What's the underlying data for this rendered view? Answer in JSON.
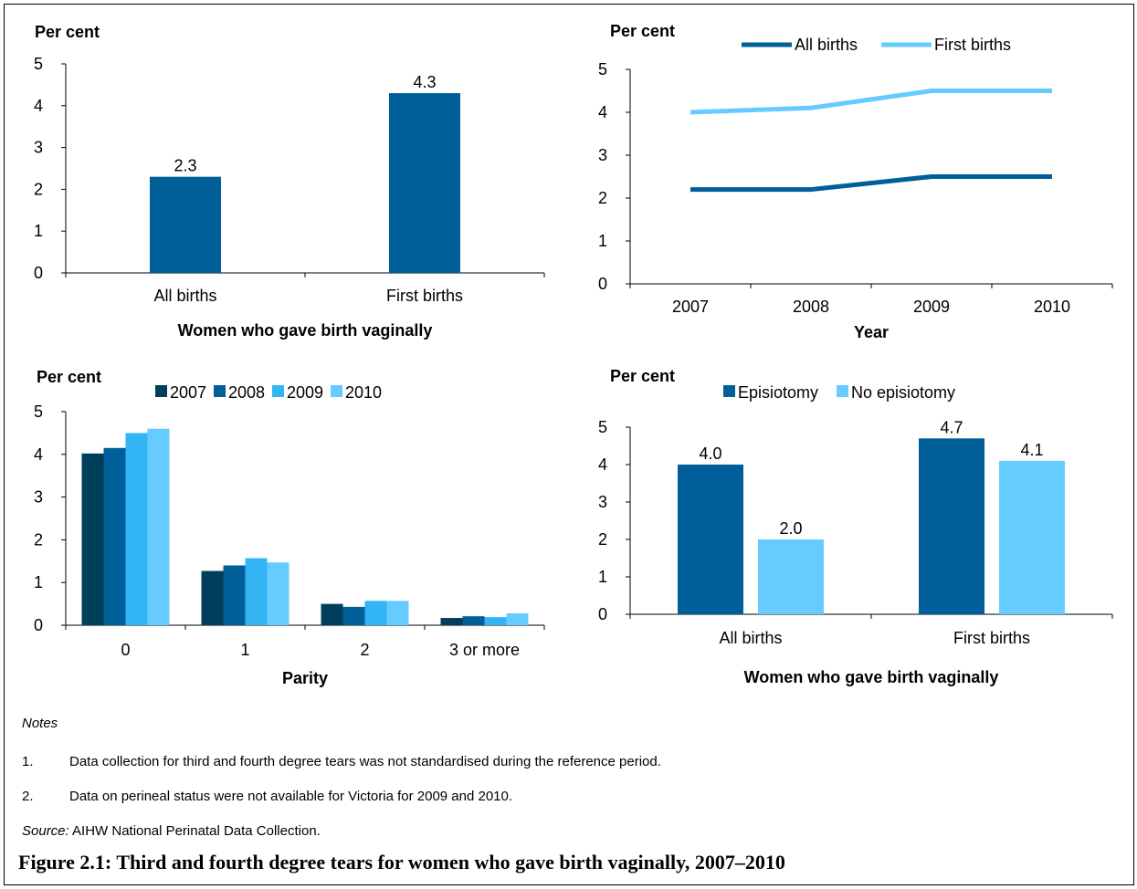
{
  "colors": {
    "dark": "#003f5c",
    "mid": "#005f99",
    "light": "#33b5f5",
    "pale": "#66ccff"
  },
  "chart_data": [
    {
      "id": "tl",
      "type": "bar",
      "title": "",
      "ylabel": "Per cent",
      "xlabel": "Women who gave birth vaginally",
      "categories": [
        "All births",
        "First births"
      ],
      "series": [
        {
          "values": [
            2.3,
            4.3
          ]
        }
      ],
      "data_labels": [
        "2.3",
        "4.3"
      ],
      "ylim": [
        0,
        5
      ],
      "yticks": [
        "0",
        "1",
        "2",
        "3",
        "4",
        "5"
      ]
    },
    {
      "id": "tr",
      "type": "line",
      "title": "",
      "ylabel": "Per cent",
      "xlabel": "Year",
      "categories": [
        "2007",
        "2008",
        "2009",
        "2010"
      ],
      "series": [
        {
          "name": "All births",
          "values": [
            2.2,
            2.2,
            2.5,
            2.5
          ]
        },
        {
          "name": "First births",
          "values": [
            4.0,
            4.1,
            4.5,
            4.5
          ]
        }
      ],
      "ylim": [
        0,
        5
      ],
      "yticks": [
        "0",
        "1",
        "2",
        "3",
        "4",
        "5"
      ],
      "legend": "top"
    },
    {
      "id": "bl",
      "type": "bar",
      "title": "",
      "ylabel": "Per cent",
      "xlabel": "Parity",
      "categories": [
        "0",
        "1",
        "2",
        "3 or more"
      ],
      "series": [
        {
          "name": "2007",
          "values": [
            4.02,
            1.27,
            0.5,
            0.17
          ]
        },
        {
          "name": "2008",
          "values": [
            4.15,
            1.4,
            0.43,
            0.21
          ]
        },
        {
          "name": "2009",
          "values": [
            4.5,
            1.57,
            0.57,
            0.19
          ]
        },
        {
          "name": "2010",
          "values": [
            4.6,
            1.47,
            0.57,
            0.28
          ]
        }
      ],
      "ylim": [
        0,
        5
      ],
      "yticks": [
        "0",
        "1",
        "2",
        "3",
        "4",
        "5"
      ],
      "legend": "top"
    },
    {
      "id": "br",
      "type": "bar",
      "title": "",
      "ylabel": "Per cent",
      "xlabel": "Women who gave birth vaginally",
      "categories": [
        "All births",
        "First births"
      ],
      "series": [
        {
          "name": "Episiotomy",
          "values": [
            4.0,
            4.7
          ],
          "labels": [
            "4.0",
            "4.7"
          ]
        },
        {
          "name": "No episiotomy",
          "values": [
            2.0,
            4.1
          ],
          "labels": [
            "2.0",
            "4.1"
          ]
        }
      ],
      "ylim": [
        0,
        5
      ],
      "yticks": [
        "0",
        "1",
        "2",
        "3",
        "4",
        "5"
      ],
      "legend": "top"
    }
  ],
  "notes": {
    "heading": "Notes",
    "items": [
      {
        "num": "1.",
        "text": "Data collection for third and fourth degree tears was not standardised during the reference period."
      },
      {
        "num": "2.",
        "text": "Data on perineal status were not available for Victoria for 2009 and 2010."
      }
    ],
    "source_label": "Source:",
    "source_text": " AIHW National Perinatal Data Collection."
  },
  "caption": "Figure 2.1: Third and fourth degree tears for women who gave birth vaginally, 2007–2010"
}
